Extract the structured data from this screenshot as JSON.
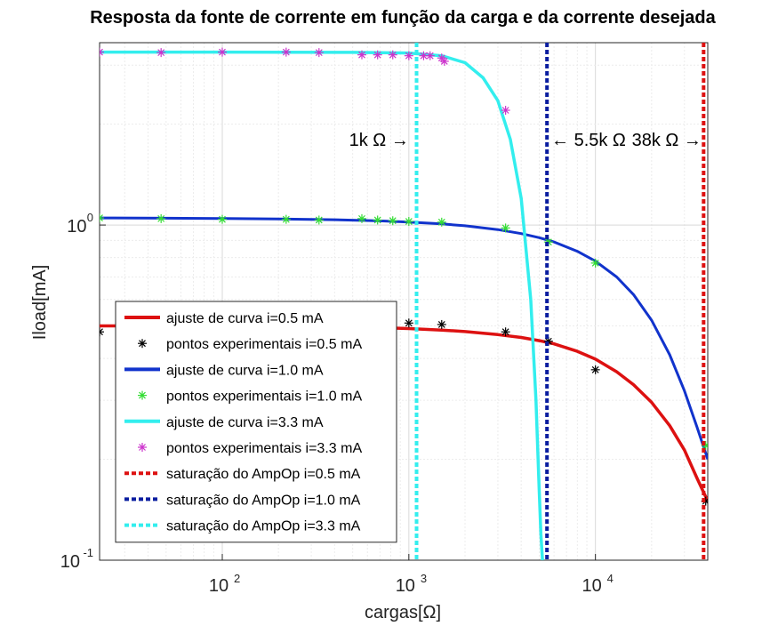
{
  "chart_data": {
    "type": "line",
    "title": "Resposta da fonte de corrente em função da carga e da corrente desejada",
    "xlabel": "cargas[Ω]",
    "ylabel": "Iload[mA]",
    "xscale": "log",
    "yscale": "log",
    "xlim": [
      22,
      40000
    ],
    "ylim": [
      0.1,
      3.5
    ],
    "grid": true,
    "legend_position": "bottom-left",
    "x_ticks": [
      {
        "value": 100,
        "base": "10",
        "exp": "2"
      },
      {
        "value": 1000,
        "base": "10",
        "exp": "3"
      },
      {
        "value": 10000,
        "base": "10",
        "exp": "4"
      }
    ],
    "y_ticks": [
      {
        "value": 1,
        "base": "10",
        "exp": "0"
      },
      {
        "value": 0.1,
        "base": "10",
        "exp": "-1"
      }
    ],
    "series": [
      {
        "name": "ajuste de curva i=0.5 mA",
        "kind": "line",
        "color": "#dd1111",
        "width": 3.5,
        "x": [
          22,
          50,
          100,
          200,
          400,
          700,
          1000,
          1500,
          2000,
          3000,
          4000,
          5000,
          6000,
          8000,
          10000,
          13000,
          16000,
          20000,
          25000,
          30000,
          35000,
          40000
        ],
        "y": [
          0.5,
          0.5,
          0.5,
          0.499,
          0.497,
          0.494,
          0.491,
          0.486,
          0.481,
          0.471,
          0.462,
          0.452,
          0.442,
          0.42,
          0.398,
          0.365,
          0.334,
          0.296,
          0.252,
          0.213,
          0.176,
          0.15
        ]
      },
      {
        "name": "pontos experimentais i=0.5 mA",
        "kind": "points",
        "color": "#000000",
        "x": [
          22,
          1000,
          1500,
          3300,
          5600,
          10000,
          39000
        ],
        "y": [
          0.48,
          0.51,
          0.505,
          0.48,
          0.45,
          0.37,
          0.15
        ]
      },
      {
        "name": "ajuste de curva i=1.0 mA",
        "kind": "line",
        "color": "#1133cc",
        "width": 3,
        "x": [
          22,
          50,
          100,
          200,
          400,
          700,
          1000,
          1500,
          2000,
          3000,
          4000,
          5000,
          6000,
          8000,
          10000,
          13000,
          16000,
          20000,
          25000,
          30000,
          35000,
          40000
        ],
        "y": [
          1.05,
          1.048,
          1.046,
          1.043,
          1.037,
          1.029,
          1.021,
          1.008,
          0.995,
          0.969,
          0.943,
          0.917,
          0.89,
          0.835,
          0.78,
          0.7,
          0.62,
          0.52,
          0.41,
          0.32,
          0.25,
          0.2
        ]
      },
      {
        "name": "pontos experimentais i=1.0 mA",
        "kind": "points",
        "color": "#33dd33",
        "x": [
          22,
          47,
          100,
          220,
          330,
          560,
          680,
          820,
          1000,
          1500,
          3300,
          5600,
          10000,
          39000
        ],
        "y": [
          1.05,
          1.045,
          1.04,
          1.04,
          1.035,
          1.045,
          1.035,
          1.03,
          1.025,
          1.02,
          0.98,
          0.89,
          0.77,
          0.22
        ]
      },
      {
        "name": "ajuste de curva i=3.3 mA",
        "kind": "line",
        "color": "#33eeee",
        "width": 3.5,
        "x": [
          22,
          100,
          500,
          1000,
          1500,
          2000,
          2500,
          3000,
          3500,
          4000,
          4500,
          4800,
          5000,
          5100,
          5200
        ],
        "y": [
          3.28,
          3.28,
          3.275,
          3.26,
          3.2,
          3.05,
          2.75,
          2.35,
          1.8,
          1.2,
          0.6,
          0.3,
          0.16,
          0.12,
          0.1
        ]
      },
      {
        "name": "pontos experimentais i=3.3 mA",
        "kind": "points",
        "color": "#cc33cc",
        "x": [
          22,
          47,
          100,
          220,
          330,
          560,
          680,
          820,
          1000,
          1200,
          1300,
          1500,
          1550,
          3300
        ],
        "y": [
          3.28,
          3.27,
          3.28,
          3.28,
          3.27,
          3.22,
          3.22,
          3.22,
          3.2,
          3.2,
          3.2,
          3.15,
          3.08,
          2.2
        ]
      },
      {
        "name": "saturação do AmpOp i=0.5 mA",
        "kind": "vline",
        "color": "#dd1111",
        "x": 38000
      },
      {
        "name": "saturação do AmpOp i=1.0 mA",
        "kind": "vline",
        "color": "#0a1ea0",
        "x": 5500
      },
      {
        "name": "saturação do AmpOp i=3.3 mA",
        "kind": "vline",
        "color": "#33eeee",
        "x": 1100
      }
    ],
    "annotations": [
      {
        "text": "1k Ω →",
        "x": 1000,
        "y": 1.8,
        "align": "end"
      },
      {
        "text": "← 5.5k Ω",
        "x": 5800,
        "y": 1.8,
        "align": "start"
      },
      {
        "text": "38k Ω →",
        "x": 37000,
        "y": 1.8,
        "align": "end"
      }
    ]
  }
}
